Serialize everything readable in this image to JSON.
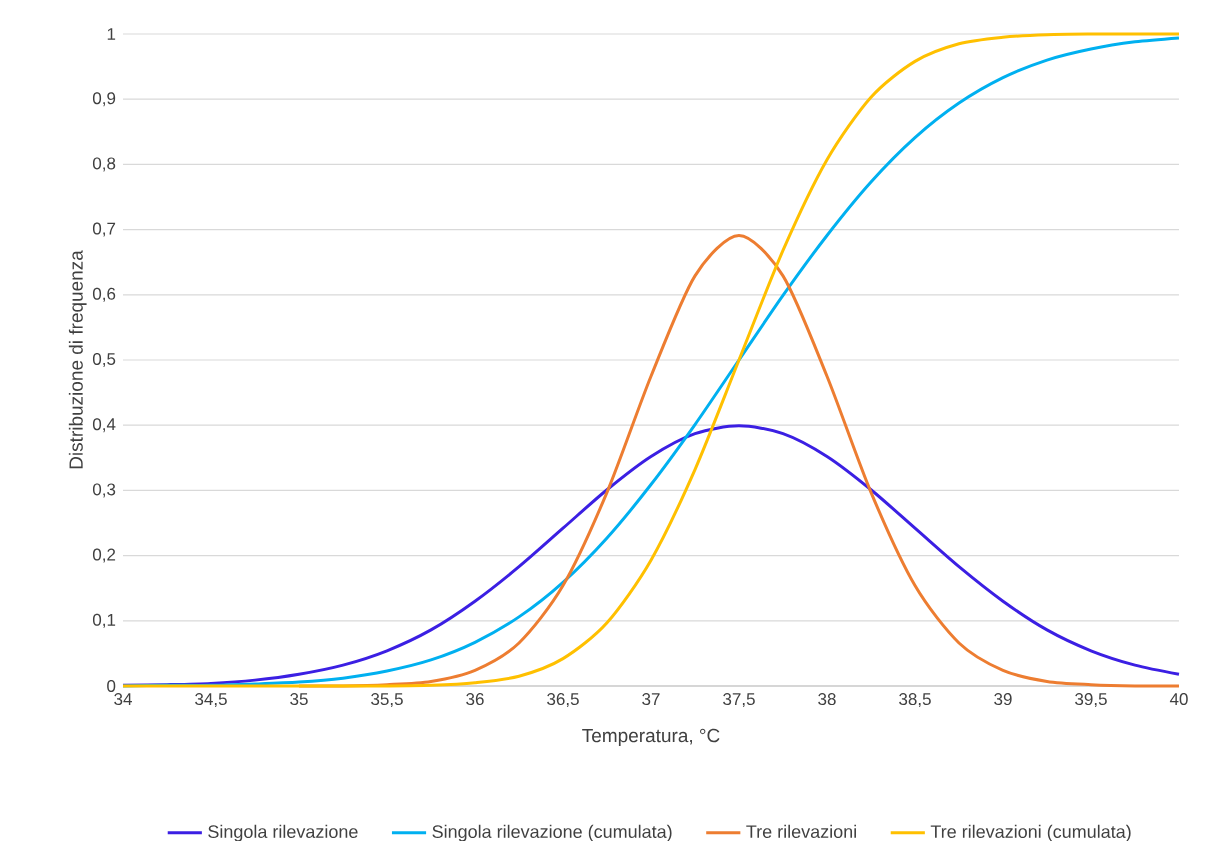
{
  "chart_data": {
    "type": "line",
    "xlabel": "Temperatura, °C",
    "ylabel": "Distribuzione di frequenza",
    "x": [
      34,
      34.25,
      34.5,
      34.75,
      35,
      35.25,
      35.5,
      35.75,
      36,
      36.25,
      36.5,
      36.75,
      37,
      37.25,
      37.5,
      37.75,
      38,
      38.25,
      38.5,
      38.75,
      39,
      39.25,
      39.5,
      39.75,
      40
    ],
    "series": [
      {
        "name": "Singola rilevazione",
        "color": "#3b1fe3",
        "values": [
          0.001,
          0.002,
          0.004,
          0.009,
          0.018,
          0.032,
          0.054,
          0.086,
          0.13,
          0.183,
          0.242,
          0.301,
          0.352,
          0.387,
          0.399,
          0.387,
          0.352,
          0.301,
          0.242,
          0.183,
          0.13,
          0.086,
          0.054,
          0.032,
          0.018
        ]
      },
      {
        "name": "Singola rilevazione (cumulata)",
        "color": "#00b0f0",
        "values": [
          0.0,
          0.001,
          0.001,
          0.003,
          0.006,
          0.012,
          0.023,
          0.04,
          0.067,
          0.106,
          0.159,
          0.227,
          0.309,
          0.401,
          0.5,
          0.599,
          0.691,
          0.773,
          0.841,
          0.894,
          0.933,
          0.96,
          0.977,
          0.988,
          0.994
        ]
      },
      {
        "name": "Tre rilevazioni",
        "color": "#ed7d31",
        "values": [
          null,
          null,
          null,
          null,
          0,
          0,
          0.002,
          0.007,
          0.024,
          0.066,
          0.154,
          0.297,
          0.475,
          0.629,
          0.691,
          0.629,
          0.475,
          0.297,
          0.154,
          0.066,
          0.024,
          0.007,
          0.002,
          0.0,
          0
        ]
      },
      {
        "name": "Tre rilevazioni (cumulata)",
        "color": "#ffc000",
        "values": [
          0,
          0,
          0,
          0,
          0,
          0,
          0,
          0.001,
          0.005,
          0.015,
          0.042,
          0.097,
          0.193,
          0.332,
          0.5,
          0.668,
          0.807,
          0.903,
          0.958,
          0.985,
          0.995,
          0.999,
          1,
          1,
          1
        ]
      }
    ],
    "xlim": [
      34,
      40
    ],
    "xticks": [
      34,
      {
        "value": 34.5,
        "label": "34,5"
      },
      35,
      {
        "value": 35.5,
        "label": "35,5"
      },
      36,
      {
        "value": 36.5,
        "label": "36,5"
      },
      37,
      {
        "value": 37.5,
        "label": "37,5"
      },
      38,
      {
        "value": 38.5,
        "label": "38,5"
      },
      39,
      {
        "value": 39.5,
        "label": "39,5"
      },
      40
    ],
    "ylim": [
      0,
      1
    ],
    "yticks": [
      0,
      {
        "value": 0.1,
        "label": "0,1"
      },
      {
        "value": 0.2,
        "label": "0,2"
      },
      {
        "value": 0.3,
        "label": "0,3"
      },
      {
        "value": 0.4,
        "label": "0,4"
      },
      {
        "value": 0.5,
        "label": "0,5"
      },
      {
        "value": 0.6,
        "label": "0,6"
      },
      {
        "value": 0.7,
        "label": "0,7"
      },
      {
        "value": 0.8,
        "label": "0,8"
      },
      {
        "value": 0.9,
        "label": "0,9"
      },
      1
    ],
    "grid": "y",
    "legend": "bottom",
    "marker": "none",
    "line_style": "solid"
  }
}
